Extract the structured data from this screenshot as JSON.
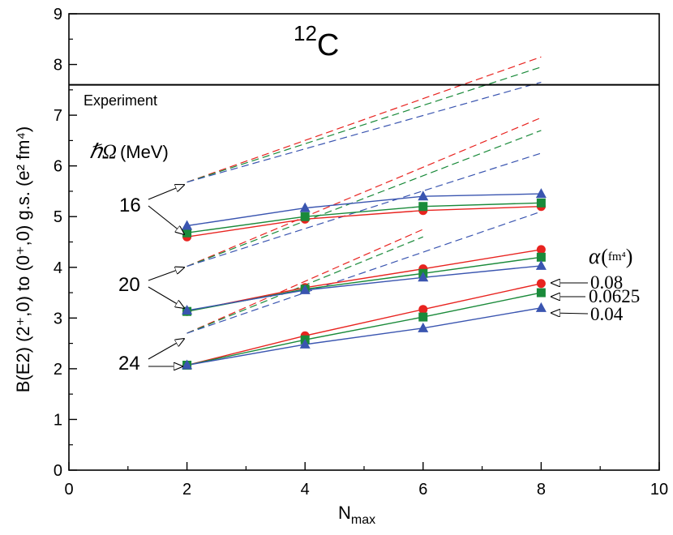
{
  "chart_data": {
    "type": "line",
    "title": {
      "sup": "12",
      "main": "C"
    },
    "xlabel": {
      "main": "N",
      "sub": "max"
    },
    "ylabel": "B(E2) (2⁺,0) to (0⁺,0) g.s. (e² fm⁴)",
    "xlim": [
      0,
      10
    ],
    "ylim": [
      0,
      9
    ],
    "xticks": [
      "0",
      "2",
      "4",
      "6",
      "8",
      "10"
    ],
    "yticks": [
      "0",
      "1",
      "2",
      "3",
      "4",
      "5",
      "6",
      "7",
      "8",
      "9"
    ],
    "experiment": {
      "label": "Experiment",
      "value": 7.6
    },
    "hw_label": {
      "sym": "ℏΩ",
      "unit": "(MeV)"
    },
    "hw_values": [
      "16",
      "20",
      "24"
    ],
    "alpha_label": {
      "sym": "α",
      "unit": "fm⁴"
    },
    "alpha_values": [
      "0.08",
      "0.0625",
      "0.04"
    ],
    "colors": {
      "0.08": "#e8231f",
      "0.0625": "#1a8a3a",
      "0.04": "#3a55b0"
    },
    "x": [
      2,
      4,
      6,
      8
    ],
    "series": [
      {
        "hw": 16,
        "alpha": "0.08",
        "marker": "circle",
        "values": [
          4.6,
          4.95,
          5.12,
          5.2
        ]
      },
      {
        "hw": 16,
        "alpha": "0.0625",
        "marker": "square",
        "values": [
          4.68,
          5.0,
          5.2,
          5.27
        ]
      },
      {
        "hw": 16,
        "alpha": "0.04",
        "marker": "triangle",
        "values": [
          4.82,
          5.17,
          5.4,
          5.45
        ]
      },
      {
        "hw": 20,
        "alpha": "0.08",
        "marker": "circle",
        "values": [
          3.13,
          3.6,
          3.97,
          4.35
        ]
      },
      {
        "hw": 20,
        "alpha": "0.0625",
        "marker": "square",
        "values": [
          3.13,
          3.57,
          3.88,
          4.2
        ]
      },
      {
        "hw": 20,
        "alpha": "0.04",
        "marker": "triangle",
        "values": [
          3.15,
          3.55,
          3.8,
          4.03
        ]
      },
      {
        "hw": 24,
        "alpha": "0.08",
        "marker": "circle",
        "values": [
          2.07,
          2.65,
          3.17,
          3.68
        ]
      },
      {
        "hw": 24,
        "alpha": "0.0625",
        "marker": "square",
        "values": [
          2.07,
          2.57,
          3.02,
          3.5
        ]
      },
      {
        "hw": 24,
        "alpha": "0.04",
        "marker": "triangle",
        "values": [
          2.07,
          2.48,
          2.8,
          3.2
        ]
      }
    ],
    "dashed": [
      {
        "hw": 16,
        "alpha": "0.08",
        "x": [
          2,
          8
        ],
        "values": [
          5.68,
          8.15
        ]
      },
      {
        "hw": 16,
        "alpha": "0.0625",
        "x": [
          2,
          8
        ],
        "values": [
          5.68,
          7.95
        ]
      },
      {
        "hw": 16,
        "alpha": "0.04",
        "x": [
          2,
          8
        ],
        "values": [
          5.68,
          7.65
        ]
      },
      {
        "hw": 20,
        "alpha": "0.08",
        "x": [
          2,
          8
        ],
        "values": [
          4.02,
          6.95
        ]
      },
      {
        "hw": 20,
        "alpha": "0.0625",
        "x": [
          2,
          8
        ],
        "values": [
          4.02,
          6.7
        ]
      },
      {
        "hw": 20,
        "alpha": "0.04",
        "x": [
          2,
          8
        ],
        "values": [
          4.02,
          6.25
        ]
      },
      {
        "hw": 24,
        "alpha": "0.08",
        "x": [
          2,
          6
        ],
        "values": [
          2.7,
          4.75
        ]
      },
      {
        "hw": 24,
        "alpha": "0.0625",
        "x": [
          2,
          6
        ],
        "values": [
          2.7,
          4.6
        ]
      },
      {
        "hw": 24,
        "alpha": "0.04",
        "x": [
          2,
          8
        ],
        "values": [
          2.7,
          5.1
        ]
      }
    ]
  }
}
